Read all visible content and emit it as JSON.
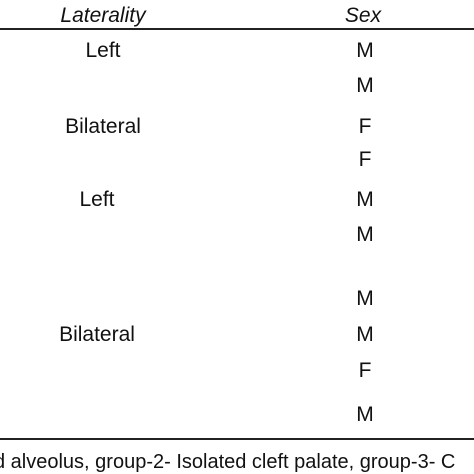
{
  "table": {
    "headers": {
      "laterality": "Laterality",
      "sex": "Sex"
    },
    "laterality_labels": [
      "Left",
      "Bilateral",
      "Left",
      "Bilateral"
    ],
    "sex_values": [
      "M",
      "M",
      "F",
      "F",
      "M",
      "M",
      "M",
      "M",
      "F",
      "M"
    ]
  },
  "footnote": "d alveolus, group-2- Isolated cleft palate, group-3- C"
}
